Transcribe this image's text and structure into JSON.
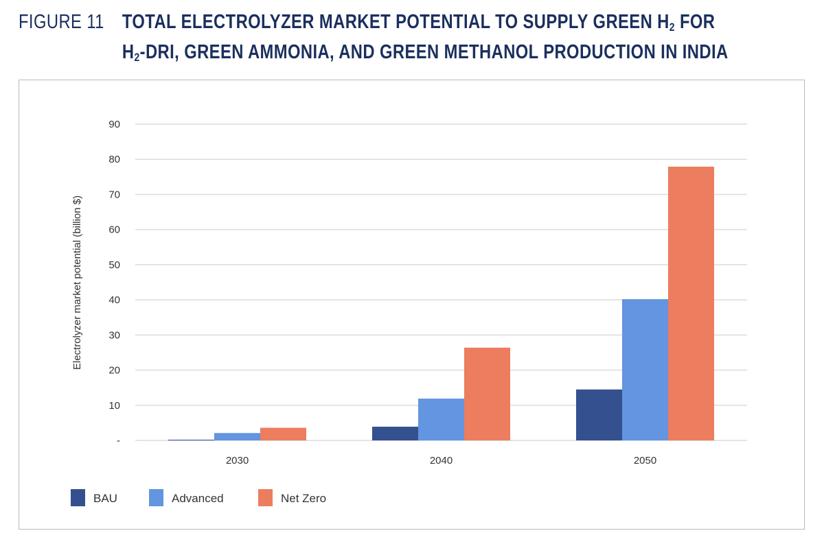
{
  "figure": {
    "label": "FIGURE 11",
    "title_line1_pre": "TOTAL ELECTROLYZER MARKET POTENTIAL TO SUPPLY GREEN H",
    "title_line1_sub": "2",
    "title_line1_post": " FOR",
    "title_line2_pre": "H",
    "title_line2_sub": "2",
    "title_line2_post": "-DRI, GREEN AMMONIA, AND GREEN METHANOL PRODUCTION IN INDIA"
  },
  "chart_data": {
    "type": "bar",
    "title": "Total Electrolyzer Market Potential to Supply Green H2 for H2-DRI, Green Ammonia, and Green Methanol Production in India",
    "xlabel": "",
    "ylabel": "Electrolyzer market potential (billion $)",
    "categories": [
      "2030",
      "2040",
      "2050"
    ],
    "ylim": [
      0,
      90
    ],
    "yticks": [
      0,
      10,
      20,
      30,
      40,
      50,
      60,
      70,
      80,
      90
    ],
    "ytick_labels": [
      "-",
      "10",
      "20",
      "30",
      "40",
      "50",
      "60",
      "70",
      "80",
      "90"
    ],
    "grid": true,
    "legend_position": "bottom-left",
    "series": [
      {
        "name": "BAU",
        "color": "#34508e",
        "values": [
          0.2,
          3.9,
          14.5
        ]
      },
      {
        "name": "Advanced",
        "color": "#6395e0",
        "values": [
          2.1,
          11.9,
          40.2
        ]
      },
      {
        "name": "Net Zero",
        "color": "#ec7d5e",
        "values": [
          3.6,
          26.4,
          77.9
        ]
      }
    ]
  }
}
